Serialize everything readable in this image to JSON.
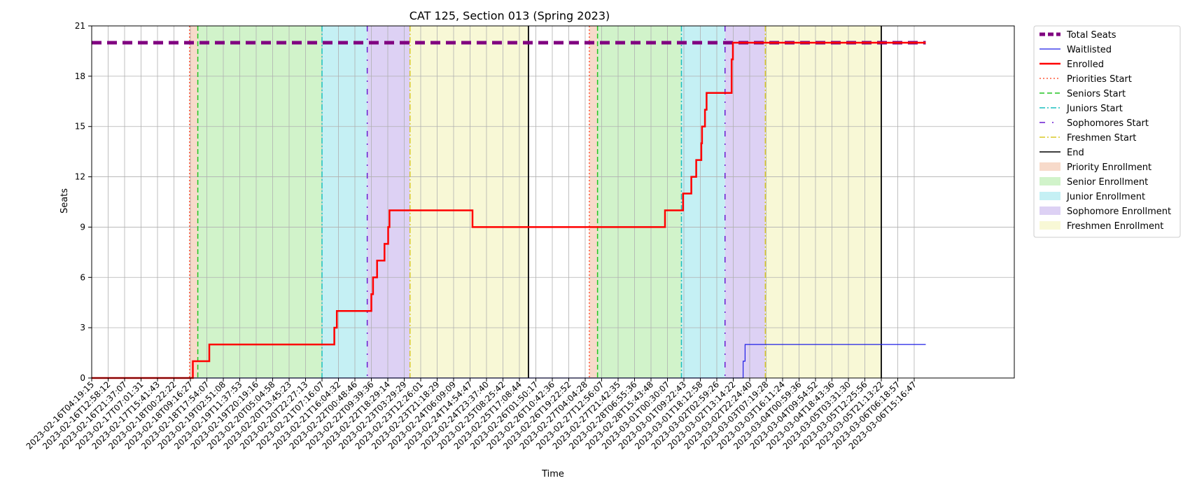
{
  "chart_data": {
    "type": "line",
    "title": "CAT 125, Section 013 (Spring 2023)",
    "xlabel": "Time",
    "ylabel": "Seats",
    "ylim": [
      0,
      21
    ],
    "yticks": [
      0,
      3,
      6,
      9,
      12,
      15,
      18,
      21
    ],
    "grid": true,
    "legend_position": "outside-right",
    "x_tick_labels": [
      "2023-02-16T04:19:15",
      "2023-02-16T12:58:12",
      "2023-02-16T21:37:07",
      "2023-02-17T07:01:31",
      "2023-02-17T15:41:43",
      "2023-02-18T00:22:22",
      "2023-02-18T09:16:27",
      "2023-02-18T17:54:07",
      "2023-02-19T02:51:08",
      "2023-02-19T11:37:53",
      "2023-02-19T20:19:16",
      "2023-02-20T05:04:58",
      "2023-02-20T13:45:23",
      "2023-02-20T22:27:13",
      "2023-02-21T07:16:07",
      "2023-02-21T16:04:32",
      "2023-02-22T00:48:46",
      "2023-02-22T09:39:36",
      "2023-02-22T18:29:14",
      "2023-02-23T03:29:29",
      "2023-02-23T12:26:01",
      "2023-02-23T21:18:29",
      "2023-02-24T06:09:09",
      "2023-02-24T14:54:47",
      "2023-02-24T23:37:40",
      "2023-02-25T08:25:42",
      "2023-02-25T17:08:44",
      "2023-02-26T01:50:17",
      "2023-02-26T10:42:36",
      "2023-02-26T19:22:52",
      "2023-02-27T04:04:28",
      "2023-02-27T12:56:07",
      "2023-02-27T21:42:35",
      "2023-02-28T06:55:36",
      "2023-02-28T15:43:48",
      "2023-03-01T00:30:07",
      "2023-03-01T09:22:43",
      "2023-03-01T18:12:58",
      "2023-03-02T02:59:26",
      "2023-03-02T13:14:22",
      "2023-03-02T22:24:40",
      "2023-03-03T07:19:28",
      "2023-03-03T16:11:24",
      "2023-03-04T00:59:36",
      "2023-03-04T09:54:52",
      "2023-03-04T18:43:36",
      "2023-03-05T03:31:30",
      "2023-03-05T12:25:56",
      "2023-03-05T21:13:22",
      "2023-03-06T06:18:57",
      "2023-03-06T15:16:47"
    ],
    "phases": [
      {
        "name": "Priority Enrollment",
        "start": 5.95,
        "end": 6.45,
        "color": "#f4cdb8"
      },
      {
        "name": "Senior Enrollment",
        "start": 6.45,
        "end": 14.0,
        "color": "#c2efb8"
      },
      {
        "name": "Junior Enrollment",
        "start": 14.0,
        "end": 16.75,
        "color": "#b2ebf0"
      },
      {
        "name": "Sophomore Enrollment",
        "start": 16.75,
        "end": 19.35,
        "color": "#d2c2f0"
      },
      {
        "name": "Freshmen Enrollment",
        "start": 19.35,
        "end": 26.55,
        "color": "#f5f5c8"
      },
      {
        "name": "Priority Enrollment",
        "start": 30.25,
        "end": 30.75,
        "color": "#f4cdb8"
      },
      {
        "name": "Senior Enrollment",
        "start": 30.75,
        "end": 35.85,
        "color": "#c2efb8"
      },
      {
        "name": "Junior Enrollment",
        "start": 35.85,
        "end": 38.5,
        "color": "#b2ebf0"
      },
      {
        "name": "Sophomore Enrollment",
        "start": 38.5,
        "end": 40.95,
        "color": "#d2c2f0"
      },
      {
        "name": "Freshmen Enrollment",
        "start": 40.95,
        "end": 48.0,
        "color": "#f5f5c8"
      }
    ],
    "markers": [
      {
        "name": "Priorities Start",
        "x": [
          5.95,
          30.25
        ],
        "color": "#ff5a3c",
        "style": "dotted"
      },
      {
        "name": "Seniors Start",
        "x": [
          6.45,
          30.75
        ],
        "color": "#22c322",
        "style": "dashed"
      },
      {
        "name": "Juniors Start",
        "x": [
          14.0,
          35.85
        ],
        "color": "#1cbfbf",
        "style": "dashdot"
      },
      {
        "name": "Sophomores Start",
        "x": [
          16.75,
          38.5
        ],
        "color": "#6a1bd0",
        "style": "sparse"
      },
      {
        "name": "Freshmen Start",
        "x": [
          19.35,
          40.95
        ],
        "color": "#d9c826",
        "style": "dashdot"
      },
      {
        "name": "End",
        "x": [
          26.55,
          48.0
        ],
        "color": "#000000",
        "style": "solid"
      }
    ],
    "series": [
      {
        "name": "Total Seats",
        "color": "#800080",
        "style": "dashed-thick",
        "x": [
          0,
          50.7
        ],
        "values": [
          20,
          20
        ]
      },
      {
        "name": "Waitlisted",
        "color": "#1f1fe6",
        "style": "thin",
        "x": [
          0,
          39.6,
          39.6,
          39.72,
          39.72,
          50.7
        ],
        "values": [
          0,
          0,
          1,
          1,
          2,
          2
        ]
      },
      {
        "name": "Enrolled",
        "color": "#ff0000",
        "style": "thick",
        "x": [
          0,
          6.05,
          6.05,
          6.15,
          6.15,
          7.15,
          7.15,
          14.75,
          14.75,
          14.9,
          14.9,
          17.0,
          17.0,
          17.1,
          17.1,
          17.35,
          17.35,
          17.8,
          17.8,
          18.02,
          18.02,
          18.1,
          18.1,
          23.15,
          23.15,
          34.85,
          34.85,
          35.95,
          35.95,
          36.45,
          36.45,
          36.75,
          36.75,
          37.06,
          37.06,
          37.1,
          37.1,
          37.28,
          37.28,
          37.38,
          37.38,
          38.9,
          38.9,
          38.98,
          38.98,
          39.05,
          39.05,
          50.7
        ],
        "values": [
          0,
          0,
          0,
          0,
          1,
          1,
          2,
          2,
          3,
          3,
          4,
          4,
          5,
          5,
          6,
          6,
          7,
          7,
          8,
          8,
          9,
          9,
          10,
          10,
          9,
          9,
          10,
          10,
          11,
          11,
          12,
          12,
          13,
          13,
          14,
          14,
          15,
          15,
          16,
          16,
          17,
          17,
          19,
          19,
          20,
          20,
          20,
          20
        ]
      }
    ],
    "legend": [
      {
        "label": "Total Seats",
        "kind": "line",
        "color": "#800080",
        "style": "dashed-thick"
      },
      {
        "label": "Waitlisted",
        "kind": "line",
        "color": "#1f1fe6",
        "style": "thin"
      },
      {
        "label": "Enrolled",
        "kind": "line",
        "color": "#ff0000",
        "style": "thick"
      },
      {
        "label": "Priorities Start",
        "kind": "line",
        "color": "#ff5a3c",
        "style": "dotted"
      },
      {
        "label": "Seniors Start",
        "kind": "line",
        "color": "#22c322",
        "style": "dashed"
      },
      {
        "label": "Juniors Start",
        "kind": "line",
        "color": "#1cbfbf",
        "style": "dashdot"
      },
      {
        "label": "Sophomores Start",
        "kind": "line",
        "color": "#6a1bd0",
        "style": "sparse"
      },
      {
        "label": "Freshmen Start",
        "kind": "line",
        "color": "#d9c826",
        "style": "dashdot"
      },
      {
        "label": "End",
        "kind": "line",
        "color": "#000000",
        "style": "solid"
      },
      {
        "label": "Priority Enrollment",
        "kind": "patch",
        "color": "#f4cdb8"
      },
      {
        "label": "Senior Enrollment",
        "kind": "patch",
        "color": "#c2efb8"
      },
      {
        "label": "Junior Enrollment",
        "kind": "patch",
        "color": "#b2ebf0"
      },
      {
        "label": "Sophomore Enrollment",
        "kind": "patch",
        "color": "#d2c2f0"
      },
      {
        "label": "Freshmen Enrollment",
        "kind": "patch",
        "color": "#f5f5c8"
      }
    ]
  }
}
